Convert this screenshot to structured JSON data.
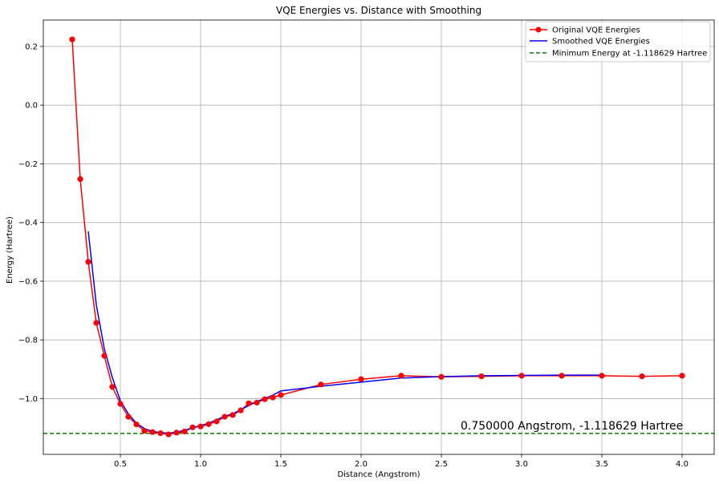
{
  "chart_data": {
    "type": "line",
    "title": "VQE Energies vs. Distance with Smoothing",
    "xlabel": "Distance (Angstrom)",
    "ylabel": "Energy (Hartree)",
    "xlim": [
      0.02,
      4.2
    ],
    "ylim": [
      -1.19,
      0.29
    ],
    "xticks": [
      0.5,
      1.0,
      1.5,
      2.0,
      2.5,
      3.0,
      3.5,
      4.0
    ],
    "xtick_labels": [
      "0.5",
      "1.0",
      "1.5",
      "2.0",
      "2.5",
      "3.0",
      "3.5",
      "4.0"
    ],
    "yticks": [
      0.2,
      0.0,
      -0.2,
      -0.4,
      -0.6,
      -0.8,
      -1.0
    ],
    "ytick_labels": [
      "0.2",
      "0.0",
      "−0.2",
      "−0.4",
      "−0.6",
      "−0.8",
      "−1.0"
    ],
    "grid": true,
    "legend_position": "top-right",
    "series": [
      {
        "name": "Original VQE Energies",
        "color": "#ff0000",
        "marker": "circle",
        "x": [
          0.2,
          0.25,
          0.3,
          0.35,
          0.4,
          0.45,
          0.5,
          0.55,
          0.6,
          0.65,
          0.7,
          0.75,
          0.8,
          0.85,
          0.9,
          0.95,
          1.0,
          1.05,
          1.1,
          1.15,
          1.2,
          1.25,
          1.3,
          1.35,
          1.4,
          1.45,
          1.5,
          1.75,
          2.0,
          2.25,
          2.5,
          2.75,
          3.0,
          3.25,
          3.5,
          3.75,
          4.0
        ],
        "y": [
          0.224,
          -0.252,
          -0.534,
          -0.742,
          -0.854,
          -0.96,
          -1.018,
          -1.062,
          -1.088,
          -1.11,
          -1.114,
          -1.118,
          -1.122,
          -1.116,
          -1.112,
          -1.098,
          -1.095,
          -1.087,
          -1.078,
          -1.062,
          -1.056,
          -1.04,
          -1.016,
          -1.014,
          -1.002,
          -0.996,
          -0.988,
          -0.952,
          -0.934,
          -0.922,
          -0.926,
          -0.924,
          -0.922,
          -0.922,
          -0.922,
          -0.924,
          -0.922
        ]
      },
      {
        "name": "Smoothed VQE Energies",
        "color": "#0000ff",
        "marker": "none",
        "x": [
          0.3,
          0.35,
          0.4,
          0.45,
          0.5,
          0.55,
          0.6,
          0.65,
          0.7,
          0.75,
          0.8,
          0.85,
          0.9,
          0.95,
          1.0,
          1.05,
          1.1,
          1.15,
          1.2,
          1.25,
          1.3,
          1.35,
          1.4,
          1.45,
          1.5,
          1.75,
          2.0,
          2.25,
          2.5,
          2.75,
          3.0,
          3.25,
          3.5
        ],
        "y": [
          -0.43,
          -0.68,
          -0.83,
          -0.928,
          -1.008,
          -1.052,
          -1.084,
          -1.102,
          -1.112,
          -1.116,
          -1.118,
          -1.114,
          -1.108,
          -1.1,
          -1.092,
          -1.084,
          -1.072,
          -1.06,
          -1.052,
          -1.038,
          -1.024,
          -1.01,
          -1.0,
          -0.988,
          -0.974,
          -0.958,
          -0.944,
          -0.93,
          -0.925,
          -0.922,
          -0.921,
          -0.92,
          -0.92
        ]
      }
    ],
    "hline": {
      "name": "Minimum Energy at -1.118629 Hartree",
      "y": -1.118629,
      "color": "#008000",
      "style": "dashed"
    },
    "annotation": {
      "text": "0.750000 Angstrom, -1.118629 Hartree",
      "x": 2.62,
      "y": -1.105,
      "color": "#008000"
    }
  }
}
